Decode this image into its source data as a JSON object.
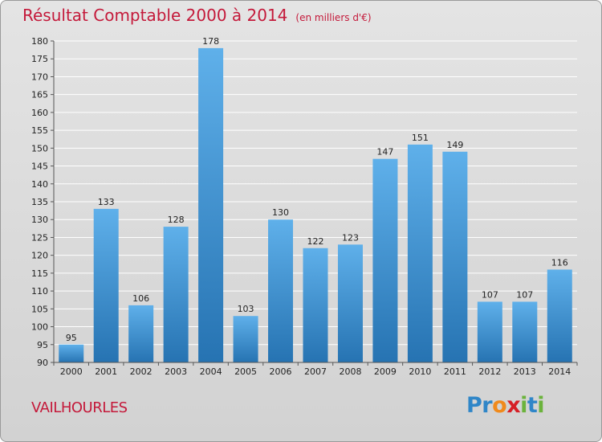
{
  "header": {
    "title": "Résultat Comptable 2000 à 2014",
    "subtitle": "(en milliers d'€)"
  },
  "footer": {
    "commune": "VAILHOURLES",
    "logo_text": "Proxiti",
    "logo_letters": [
      {
        "char": "P",
        "color": "#2f86c8"
      },
      {
        "char": "r",
        "color": "#2f86c8"
      },
      {
        "char": "o",
        "color": "#f08a1c"
      },
      {
        "char": "x",
        "color": "#d61f26"
      },
      {
        "char": "i",
        "color": "#6bb33c"
      },
      {
        "char": "t",
        "color": "#2f86c8"
      },
      {
        "char": "i",
        "color": "#6bb33c"
      }
    ]
  },
  "colors": {
    "title": "#c4193a",
    "bar_top": "#5fb0ea",
    "bar_bottom": "#2673b2",
    "grid": "#ffffff",
    "axis": "#555555",
    "label": "#222222"
  },
  "chart_data": {
    "type": "bar",
    "title": "Résultat Comptable 2000 à 2014",
    "subtitle": "(en milliers d'€)",
    "categories": [
      "2000",
      "2001",
      "2002",
      "2003",
      "2004",
      "2005",
      "2006",
      "2007",
      "2008",
      "2009",
      "2010",
      "2011",
      "2012",
      "2013",
      "2014"
    ],
    "values": [
      95,
      133,
      106,
      128,
      178,
      103,
      130,
      122,
      123,
      147,
      151,
      149,
      107,
      107,
      116
    ],
    "ylim": [
      90,
      180
    ],
    "ytick_step": 5,
    "grid": true,
    "data_labels": true
  }
}
